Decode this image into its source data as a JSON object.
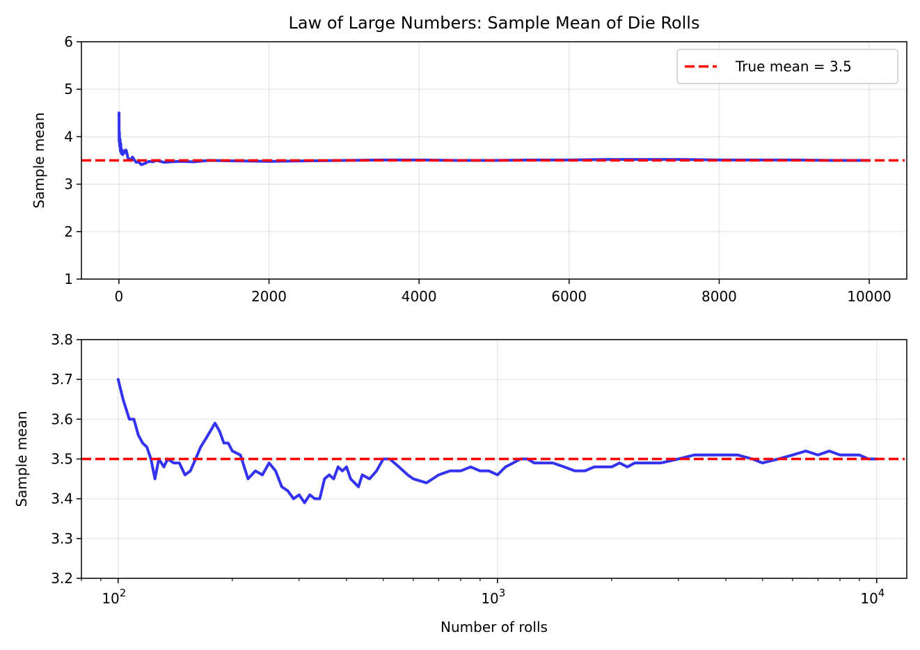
{
  "chart_data": [
    {
      "type": "line",
      "title": "Law of Large Numbers: Sample Mean of Die Rolls",
      "xlabel": "",
      "ylabel": "Sample mean",
      "xscale": "linear",
      "xlim": [
        -500,
        10500
      ],
      "ylim": [
        1,
        6
      ],
      "xticks": [
        0,
        2000,
        4000,
        6000,
        8000,
        10000
      ],
      "xtick_labels": [
        "0",
        "2000",
        "4000",
        "6000",
        "8000",
        "10000"
      ],
      "yticks": [
        1,
        2,
        3,
        4,
        5,
        6
      ],
      "ytick_labels": [
        "1",
        "2",
        "3",
        "4",
        "5",
        "6"
      ],
      "grid": true,
      "legend": {
        "placement": "upper-right",
        "entries": [
          "True mean = 3.5"
        ]
      },
      "reference_line": {
        "y": 3.5,
        "style": "dashed",
        "color": "#ff0000",
        "label": "True mean = 3.5"
      },
      "series": [
        {
          "color": "#2222ee",
          "x": [
            1,
            3,
            6,
            10,
            15,
            20,
            25,
            30,
            40,
            50,
            60,
            70,
            80,
            90,
            100,
            120,
            140,
            160,
            180,
            200,
            230,
            260,
            300,
            350,
            400,
            450,
            500,
            600,
            700,
            800,
            1000,
            1200,
            1500,
            2000,
            2500,
            3000,
            3500,
            4000,
            4500,
            5000,
            5500,
            6000,
            6500,
            7000,
            7500,
            8000,
            8500,
            9000,
            9500,
            10000
          ],
          "y": [
            4.5,
            3.9,
            4.1,
            3.8,
            3.95,
            3.7,
            3.85,
            3.65,
            3.72,
            3.62,
            3.7,
            3.68,
            3.66,
            3.72,
            3.7,
            3.55,
            3.53,
            3.5,
            3.57,
            3.52,
            3.46,
            3.47,
            3.41,
            3.44,
            3.48,
            3.47,
            3.5,
            3.46,
            3.47,
            3.48,
            3.47,
            3.5,
            3.49,
            3.48,
            3.49,
            3.5,
            3.51,
            3.51,
            3.5,
            3.5,
            3.51,
            3.51,
            3.52,
            3.52,
            3.52,
            3.51,
            3.51,
            3.51,
            3.5,
            3.5
          ]
        }
      ]
    },
    {
      "type": "line",
      "title": "",
      "xlabel": "Number of rolls",
      "ylabel": "Sample mean",
      "xscale": "log",
      "xlim": [
        80,
        12000
      ],
      "ylim": [
        3.2,
        3.8
      ],
      "xticks": [
        100,
        1000,
        10000
      ],
      "xtick_labels": [
        {
          "base": "10",
          "exp": "2"
        },
        {
          "base": "10",
          "exp": "3"
        },
        {
          "base": "10",
          "exp": "4"
        }
      ],
      "yticks": [
        3.2,
        3.3,
        3.4,
        3.5,
        3.6,
        3.7,
        3.8
      ],
      "ytick_labels": [
        "3.2",
        "3.3",
        "3.4",
        "3.5",
        "3.6",
        "3.7",
        "3.8"
      ],
      "grid": true,
      "reference_line": {
        "y": 3.5,
        "style": "dashed",
        "color": "#ff0000"
      },
      "series": [
        {
          "color": "#2222ee",
          "x": [
            100,
            103,
            107,
            110,
            113,
            116,
            119,
            122,
            125,
            128,
            132,
            135,
            140,
            145,
            150,
            155,
            160,
            165,
            170,
            175,
            180,
            185,
            190,
            195,
            200,
            210,
            220,
            230,
            240,
            250,
            260,
            270,
            280,
            290,
            300,
            310,
            320,
            330,
            340,
            350,
            360,
            370,
            380,
            390,
            400,
            410,
            420,
            430,
            440,
            460,
            480,
            500,
            520,
            550,
            580,
            600,
            650,
            700,
            750,
            800,
            850,
            900,
            950,
            1000,
            1050,
            1100,
            1150,
            1200,
            1250,
            1300,
            1400,
            1500,
            1600,
            1700,
            1800,
            1900,
            2000,
            2100,
            2200,
            2300,
            2500,
            2700,
            3000,
            3300,
            3600,
            4000,
            4300,
            4700,
            5000,
            5500,
            6000,
            6500,
            7000,
            7500,
            8000,
            8500,
            9000,
            9500,
            10000
          ],
          "y": [
            3.7,
            3.65,
            3.6,
            3.6,
            3.56,
            3.54,
            3.53,
            3.5,
            3.45,
            3.5,
            3.48,
            3.5,
            3.49,
            3.49,
            3.46,
            3.47,
            3.5,
            3.53,
            3.55,
            3.57,
            3.59,
            3.57,
            3.54,
            3.54,
            3.52,
            3.51,
            3.45,
            3.47,
            3.46,
            3.49,
            3.47,
            3.43,
            3.42,
            3.4,
            3.41,
            3.39,
            3.41,
            3.4,
            3.4,
            3.45,
            3.46,
            3.45,
            3.48,
            3.47,
            3.48,
            3.45,
            3.44,
            3.43,
            3.46,
            3.45,
            3.47,
            3.5,
            3.5,
            3.48,
            3.46,
            3.45,
            3.44,
            3.46,
            3.47,
            3.47,
            3.48,
            3.47,
            3.47,
            3.46,
            3.48,
            3.49,
            3.5,
            3.5,
            3.49,
            3.49,
            3.49,
            3.48,
            3.47,
            3.47,
            3.48,
            3.48,
            3.48,
            3.49,
            3.48,
            3.49,
            3.49,
            3.49,
            3.5,
            3.51,
            3.51,
            3.51,
            3.51,
            3.5,
            3.49,
            3.5,
            3.51,
            3.52,
            3.51,
            3.52,
            3.51,
            3.51,
            3.51,
            3.5,
            3.5
          ]
        }
      ]
    }
  ]
}
